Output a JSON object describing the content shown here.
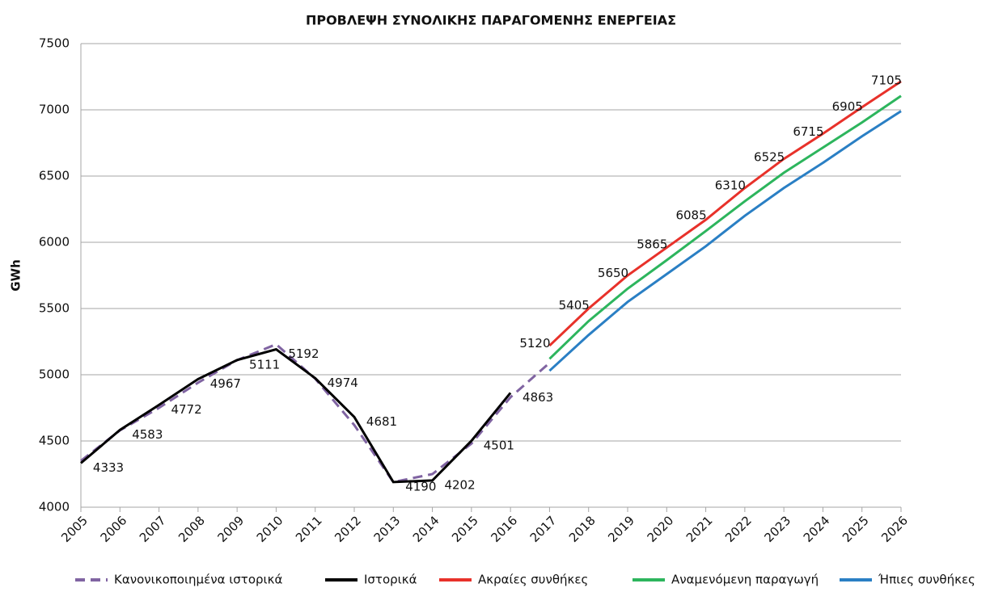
{
  "chart_data": {
    "type": "line",
    "title": "ΠΡΟΒΛΕΨΗ ΣΥΝΟΛΙΚΗΣ ΠΑΡΑΓΟΜΕΝΗΣ ΕΝΕΡΓΕΙΑΣ",
    "y_label": "GWh",
    "x": [
      2005,
      2006,
      2007,
      2008,
      2009,
      2010,
      2011,
      2012,
      2013,
      2014,
      2015,
      2016,
      2017,
      2018,
      2019,
      2020,
      2021,
      2022,
      2023,
      2024,
      2025,
      2026
    ],
    "xlim": [
      2005,
      2026
    ],
    "xticks": [
      2005,
      2006,
      2007,
      2008,
      2009,
      2010,
      2011,
      2012,
      2013,
      2014,
      2015,
      2016,
      2017,
      2018,
      2019,
      2020,
      2021,
      2022,
      2023,
      2024,
      2025,
      2026
    ],
    "ylim": [
      4000,
      7500
    ],
    "yticks": [
      4000,
      4500,
      5000,
      5500,
      6000,
      6500,
      7000,
      7500
    ],
    "grid": true,
    "legend": "bottom",
    "series": [
      {
        "name": "Κανονικοποιημένα ιστορικά",
        "color": "#8064a2",
        "dashed": true,
        "values": [
          4350,
          4580,
          4750,
          4940,
          5110,
          5230,
          4970,
          4620,
          4190,
          4250,
          4480,
          4830,
          5090,
          null,
          null,
          null,
          null,
          null,
          null,
          null,
          null,
          null
        ]
      },
      {
        "name": "Ιστορικά",
        "color": "#000000",
        "show_labels": true,
        "values": [
          4333,
          4583,
          4772,
          4967,
          5111,
          5192,
          4974,
          4681,
          4190,
          4202,
          4501,
          4863,
          null,
          null,
          null,
          null,
          null,
          null,
          null,
          null,
          null,
          null
        ]
      },
      {
        "name": "Ακραίες συνθήκες",
        "color": "#e8312a",
        "values": [
          null,
          null,
          null,
          null,
          null,
          null,
          null,
          null,
          null,
          null,
          null,
          null,
          5220,
          5500,
          5750,
          5960,
          6170,
          6410,
          6630,
          6820,
          7020,
          7215
        ]
      },
      {
        "name": "Αναμενόμενη παραγωγή",
        "color": "#2db55d",
        "show_labels": true,
        "values": [
          null,
          null,
          null,
          null,
          null,
          null,
          null,
          null,
          null,
          null,
          null,
          null,
          5120,
          5405,
          5650,
          5865,
          6085,
          6310,
          6525,
          6715,
          6905,
          7105
        ]
      },
      {
        "name": "Ήπιες συνθήκες",
        "color": "#2a7fc4",
        "values": [
          null,
          null,
          null,
          null,
          null,
          null,
          null,
          null,
          null,
          null,
          null,
          null,
          5030,
          5300,
          5550,
          5760,
          5970,
          6200,
          6410,
          6600,
          6800,
          6990
        ]
      }
    ]
  }
}
